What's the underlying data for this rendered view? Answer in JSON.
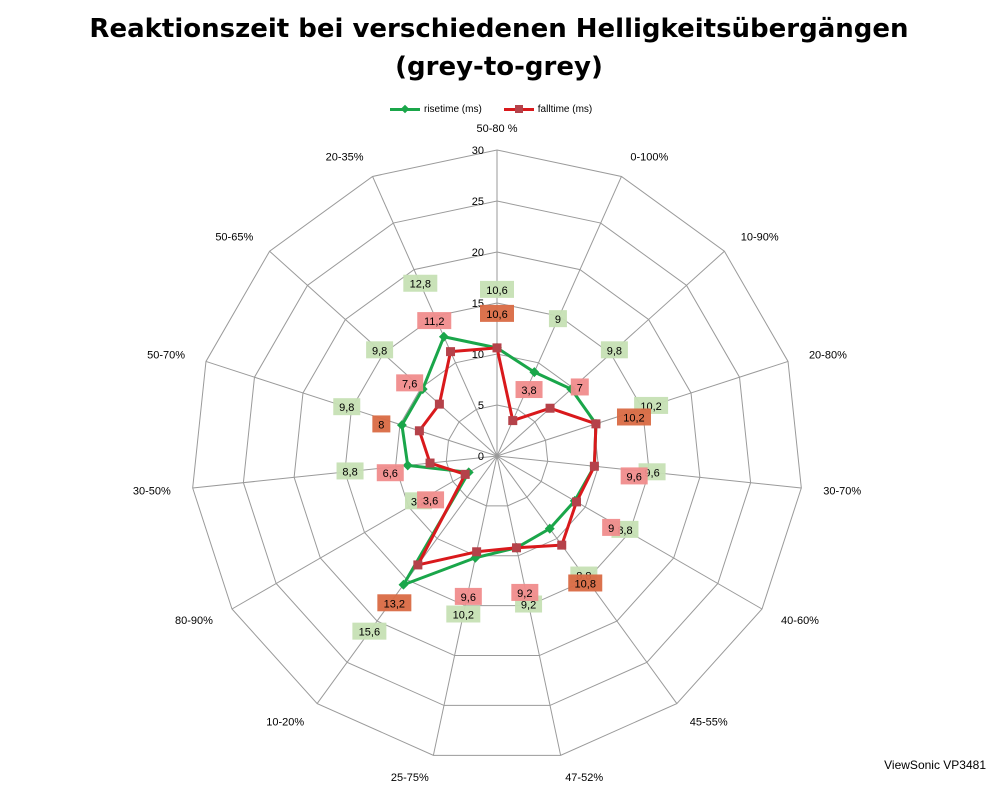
{
  "chart_data": {
    "type": "radar",
    "title_line1": "Reaktionszeit bei verschiedenen Helligkeitsübergängen",
    "title_line2": "(grey-to-grey)",
    "categories": [
      "50-80 %",
      "0-100%",
      "10-90%",
      "20-80%",
      "30-70%",
      "40-60%",
      "45-55%",
      "47-52%",
      "25-75%",
      "10-20%",
      "80-90%",
      "30-50%",
      "50-70%",
      "50-65%",
      "20-35%"
    ],
    "rlim": [
      0,
      30
    ],
    "ticks": [
      "0",
      "5",
      "10",
      "15",
      "20",
      "25",
      "30"
    ],
    "grid": true,
    "legend_position": "top",
    "series": [
      {
        "name": "risetime (ms)",
        "color": "#1aa64a",
        "values": [
          10.6,
          9,
          9.8,
          10.2,
          9.6,
          8.8,
          8.8,
          9.2,
          10.2,
          15.6,
          3.2,
          8.8,
          9.8,
          9.8,
          12.8
        ],
        "labels": [
          "10,6",
          "9",
          "9,8",
          "10,2",
          "9,6",
          "8,8",
          "8,8",
          "9,2",
          "10,2",
          "15,6",
          "3,2",
          "8,8",
          "9,8",
          "9,8",
          "12,8"
        ]
      },
      {
        "name": "falltime (ms)",
        "color": "#d9191c",
        "values": [
          10.6,
          3.8,
          7,
          10.2,
          9.6,
          9,
          10.8,
          9.2,
          9.6,
          13.2,
          3.6,
          6.6,
          8,
          7.6,
          11.2
        ],
        "labels": [
          "10,6",
          "3,8",
          "7",
          "10,2",
          "9,6",
          "9",
          "10,8",
          "9,2",
          "9,6",
          "13,2",
          "3,6",
          "6,6",
          "8",
          "7,6",
          "11,2"
        ]
      }
    ]
  },
  "credit": "ViewSonic VP3481"
}
